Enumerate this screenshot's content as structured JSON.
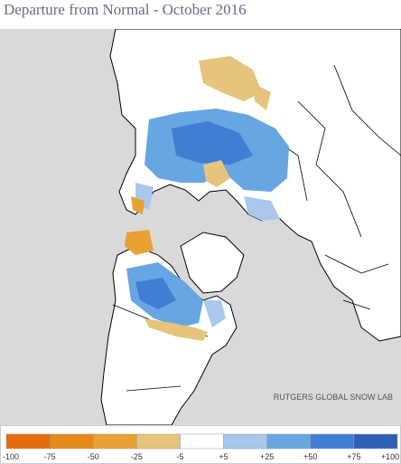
{
  "title": "Departure from Normal - October 2016",
  "credit": "RUTGERS GLOBAL SNOW LAB",
  "legend": {
    "labels": [
      "-100",
      "-75",
      "-50",
      "-25",
      "-5",
      "+5",
      "+25",
      "+50",
      "+75",
      "+100"
    ],
    "colors": [
      "#e46c0a",
      "#e88a18",
      "#e8a234",
      "#e6c47c",
      "#ffffff",
      "#a9c8ec",
      "#66a6e2",
      "#3f7ed2",
      "#2e5fb4"
    ]
  }
}
